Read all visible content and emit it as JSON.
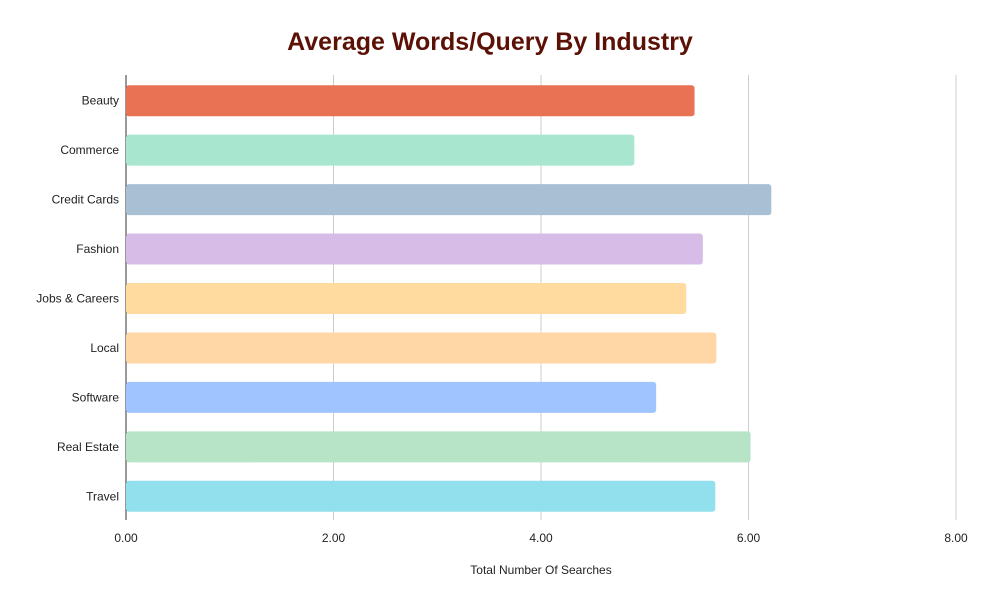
{
  "chart_data": {
    "type": "bar",
    "orientation": "horizontal",
    "title": "Average Words/Query By Industry",
    "xlabel": "Total Number Of Searches",
    "ylabel": "",
    "xlim": [
      0,
      8
    ],
    "xticks": [
      "0.00",
      "2.00",
      "4.00",
      "6.00",
      "8.00"
    ],
    "grid": true,
    "legend": "none",
    "categories": [
      "Beauty",
      "Commerce",
      "Credit Cards",
      "Fashion",
      "Jobs & Careers",
      "Local",
      "Software",
      "Real Estate",
      "Travel"
    ],
    "values": [
      5.48,
      4.9,
      6.22,
      5.56,
      5.4,
      5.69,
      5.11,
      6.02,
      5.68
    ],
    "colors": [
      "#e97154",
      "#a8e6cf",
      "#a9bfd3",
      "#d6bce6",
      "#ffdba0",
      "#ffd6a5",
      "#a0c4ff",
      "#b7e4c7",
      "#92dfee"
    ],
    "title_color": "#5c1106"
  }
}
